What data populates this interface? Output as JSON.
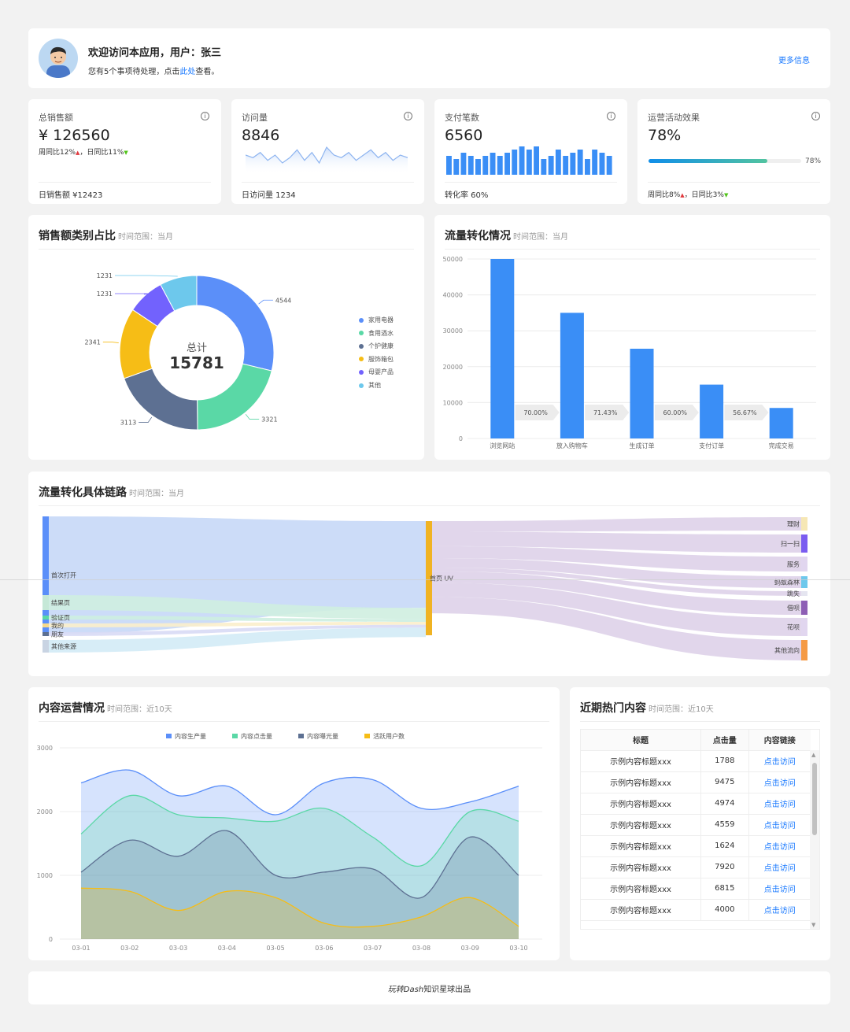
{
  "header": {
    "welcome": "欢迎访问本应用，用户：张三",
    "notice_prefix": "您有5个事项待处理，点击",
    "notice_link": "此处",
    "notice_suffix": "查看。",
    "more_info": "更多信息"
  },
  "stats": {
    "sales": {
      "label": "总销售额",
      "value": "¥ 126560",
      "week": "周同比12%",
      "day": "，日同比11%",
      "foot": "日销售额 ¥12423"
    },
    "visits": {
      "label": "访问量",
      "value": "8846",
      "foot": "日访问量 1234",
      "spark": [
        6,
        5,
        7,
        4,
        6,
        3,
        5,
        8,
        4,
        7,
        3,
        9,
        6,
        5,
        7,
        4,
        6,
        8,
        5,
        7,
        4,
        6,
        5
      ]
    },
    "payments": {
      "label": "支付笔数",
      "value": "6560",
      "foot": "转化率 60%",
      "bars": [
        6,
        5,
        7,
        6,
        5,
        6,
        7,
        6,
        7,
        8,
        9,
        8,
        9,
        5,
        6,
        8,
        6,
        7,
        8,
        5,
        8,
        7,
        6
      ]
    },
    "campaign": {
      "label": "运营活动效果",
      "value": "78%",
      "progress": 0.78,
      "progress_label": "78%",
      "week": "周同比8%",
      "day": "，日同比3%"
    }
  },
  "donut": {
    "title": "销售额类别占比",
    "range": "时间范围：当月",
    "center_label": "总计",
    "center_value": "15781",
    "chart_data": {
      "type": "pie",
      "categories": [
        "家用电器",
        "食用酒水",
        "个护健康",
        "服饰箱包",
        "母婴产品",
        "其他"
      ],
      "values": [
        4544,
        3321,
        3113,
        2341,
        1231,
        1231
      ],
      "colors": [
        "#5b8ff9",
        "#5ad8a6",
        "#5d7092",
        "#f6bd16",
        "#7262fd",
        "#6dc8ec"
      ],
      "value_labels": [
        "4544",
        "3321",
        "3113",
        "2341",
        "1231",
        "1231"
      ]
    }
  },
  "funnel": {
    "title": "流量转化情况",
    "range": "时间范围：当月",
    "chart_data": {
      "type": "bar",
      "categories": [
        "浏览网站",
        "放入购物车",
        "生成订单",
        "支付订单",
        "完成交易"
      ],
      "values": [
        50000,
        35000,
        25000,
        15000,
        8500
      ],
      "ylim": [
        0,
        50000
      ],
      "yticks": [
        "0",
        "10000",
        "20000",
        "30000",
        "40000",
        "50000"
      ],
      "rates": [
        "70.00%",
        "71.43%",
        "60.00%",
        "56.67%"
      ],
      "color": "#3a8ef6"
    }
  },
  "sankey": {
    "title": "流量转化具体链路",
    "range": "时间范围：当月",
    "sources": [
      "首次打开",
      "结果页",
      "验证页",
      "我的",
      "朋友",
      "其他来源"
    ],
    "middle": "首页 UV",
    "targets": [
      "理财",
      "扫一扫",
      "服务",
      "蚂蚁森林",
      "跳失",
      "借呗",
      "花呗",
      "其他流向"
    ]
  },
  "content": {
    "title": "内容运营情况",
    "range": "时间范围：近10天",
    "chart_data": {
      "type": "area",
      "x": [
        "03-01",
        "03-02",
        "03-03",
        "03-04",
        "03-05",
        "03-06",
        "03-07",
        "03-08",
        "03-09",
        "03-10"
      ],
      "ylim": [
        0,
        3000
      ],
      "yticks": [
        "0",
        "1000",
        "2000",
        "3000"
      ],
      "series": [
        {
          "name": "内容生产量",
          "color": "#5b8ff9",
          "values": [
            2450,
            2650,
            2250,
            2400,
            1950,
            2450,
            2500,
            2050,
            2150,
            2400
          ]
        },
        {
          "name": "内容点击量",
          "color": "#5ad8a6",
          "values": [
            1650,
            2250,
            1950,
            1900,
            1850,
            2050,
            1600,
            1150,
            2000,
            1850
          ]
        },
        {
          "name": "内容曝光量",
          "color": "#5d7092",
          "values": [
            1050,
            1550,
            1300,
            1700,
            1000,
            1050,
            1100,
            650,
            1600,
            1000
          ]
        },
        {
          "name": "活跃用户数",
          "color": "#f6bd16",
          "values": [
            800,
            750,
            450,
            750,
            650,
            250,
            200,
            350,
            650,
            200
          ]
        }
      ]
    }
  },
  "hot": {
    "title": "近期热门内容",
    "range": "时间范围：近10天",
    "columns": [
      "标题",
      "点击量",
      "内容链接"
    ],
    "rows": [
      {
        "title": "示例内容标题xxx",
        "clicks": "1788",
        "link": "点击访问"
      },
      {
        "title": "示例内容标题xxx",
        "clicks": "9475",
        "link": "点击访问"
      },
      {
        "title": "示例内容标题xxx",
        "clicks": "4974",
        "link": "点击访问"
      },
      {
        "title": "示例内容标题xxx",
        "clicks": "4559",
        "link": "点击访问"
      },
      {
        "title": "示例内容标题xxx",
        "clicks": "1624",
        "link": "点击访问"
      },
      {
        "title": "示例内容标题xxx",
        "clicks": "7920",
        "link": "点击访问"
      },
      {
        "title": "示例内容标题xxx",
        "clicks": "6815",
        "link": "点击访问"
      },
      {
        "title": "示例内容标题xxx",
        "clicks": "4000",
        "link": "点击访问"
      }
    ]
  },
  "footer": {
    "text_italic": "玩转Dash",
    "text_normal": "知识星球出品"
  }
}
